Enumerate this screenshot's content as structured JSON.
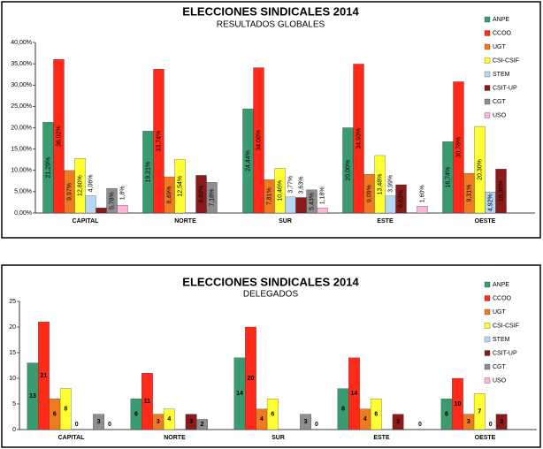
{
  "chart_data": [
    {
      "type": "bar",
      "title": "ELECCIONES SINDICALES 2014",
      "subtitle": "RESULTADOS GLOBALES",
      "categories": [
        "CAPITAL",
        "NORTE",
        "SUR",
        "ESTE",
        "OESTE"
      ],
      "ylim": [
        0,
        40
      ],
      "yticks": [
        {
          "value": 0,
          "label": "0,00%"
        },
        {
          "value": 5,
          "label": "5,00%"
        },
        {
          "value": 10,
          "label": "10,00%"
        },
        {
          "value": 15,
          "label": "15,00%"
        },
        {
          "value": 20,
          "label": "20,00%"
        },
        {
          "value": 25,
          "label": "25,00%"
        },
        {
          "value": 30,
          "label": "30,00%"
        },
        {
          "value": 35,
          "label": "35,00%"
        },
        {
          "value": 40,
          "label": "40,00%"
        }
      ],
      "legend": "top-right",
      "series": [
        {
          "name": "ANPE",
          "color": "#3a9a70",
          "values": [
            21.29,
            19.21,
            24.44,
            20.0,
            16.74
          ],
          "value_labels": [
            "21,29%",
            "19,21%",
            "24,44%",
            "20,00%",
            "16,74%"
          ]
        },
        {
          "name": "CCOO",
          "color": "#ff2a1a",
          "values": [
            36.02,
            33.74,
            34.08,
            34.93,
            30.78
          ],
          "value_labels": [
            "36,02%",
            "33,74%",
            "34,08%",
            "34,93%",
            "30,78%"
          ]
        },
        {
          "name": "UGT",
          "color": "#f07a22",
          "values": [
            9.97,
            8.49,
            7.81,
            9.09,
            9.31
          ],
          "value_labels": [
            "9,97%",
            "8,49%",
            "7,81%",
            "9,09%",
            "9,31%"
          ]
        },
        {
          "name": "CSI-CSIF",
          "color": "#ffff33",
          "values": [
            12.8,
            12.54,
            10.46,
            13.48,
            20.3
          ],
          "value_labels": [
            "12,80%",
            "12,54%",
            "10,46%",
            "13,48%",
            "20,30%"
          ]
        },
        {
          "name": "STEM",
          "color": "#b4d8f6",
          "values": [
            4.06,
            null,
            3.77,
            3.99,
            4.92
          ],
          "value_labels": [
            "4,06%",
            null,
            "3,77%",
            "3,99%",
            "4,92%"
          ]
        },
        {
          "name": "CSIT-UP",
          "color": "#8c1a1a",
          "values": [
            1.2,
            8.83,
            3.63,
            6.63,
            10.3
          ],
          "value_labels": [
            null,
            "8,83%",
            "3,63%",
            "6,63%",
            "10,30%"
          ]
        },
        {
          "name": "CGT",
          "color": "#8e8e8e",
          "values": [
            5.78,
            7.18,
            5.43,
            null,
            null
          ],
          "value_labels": [
            "5,78%",
            "7,18%",
            "5,43%",
            null,
            null
          ]
        },
        {
          "name": "USO",
          "color": "#ffb4da",
          "values": [
            1.8,
            null,
            1.18,
            1.6,
            null
          ],
          "value_labels": [
            "1,8%",
            null,
            "1,18%",
            "1,60%",
            null
          ]
        }
      ]
    },
    {
      "type": "bar",
      "title": "ELECCIONES SINDICALES 2014",
      "subtitle": "DELEGADOS",
      "categories": [
        "CAPITAL",
        "NORTE",
        "SUR",
        "ESTE",
        "OESTE"
      ],
      "ylim": [
        0,
        25
      ],
      "yticks": [
        0,
        5,
        10,
        15,
        20,
        25
      ],
      "legend": "top-right",
      "series": [
        {
          "name": "ANPE",
          "color": "#3a9a70",
          "values": [
            13,
            6,
            14,
            8,
            6
          ]
        },
        {
          "name": "CCOO",
          "color": "#ff2a1a",
          "values": [
            21,
            11,
            20,
            14,
            10
          ]
        },
        {
          "name": "UGT",
          "color": "#f07a22",
          "values": [
            6,
            3,
            4,
            4,
            3
          ]
        },
        {
          "name": "CSI-CSIF",
          "color": "#ffff33",
          "values": [
            8,
            4,
            6,
            6,
            7
          ]
        },
        {
          "name": "STEM",
          "color": "#b4d8f6",
          "values": [
            0,
            null,
            null,
            null,
            0
          ]
        },
        {
          "name": "CSIT-UP",
          "color": "#8c1a1a",
          "values": [
            null,
            3,
            null,
            3,
            3
          ]
        },
        {
          "name": "CGT",
          "color": "#8e8e8e",
          "values": [
            3,
            2,
            3,
            null,
            null
          ]
        },
        {
          "name": "USO",
          "color": "#ffb4da",
          "values": [
            0,
            null,
            0,
            0,
            null
          ]
        }
      ]
    }
  ]
}
